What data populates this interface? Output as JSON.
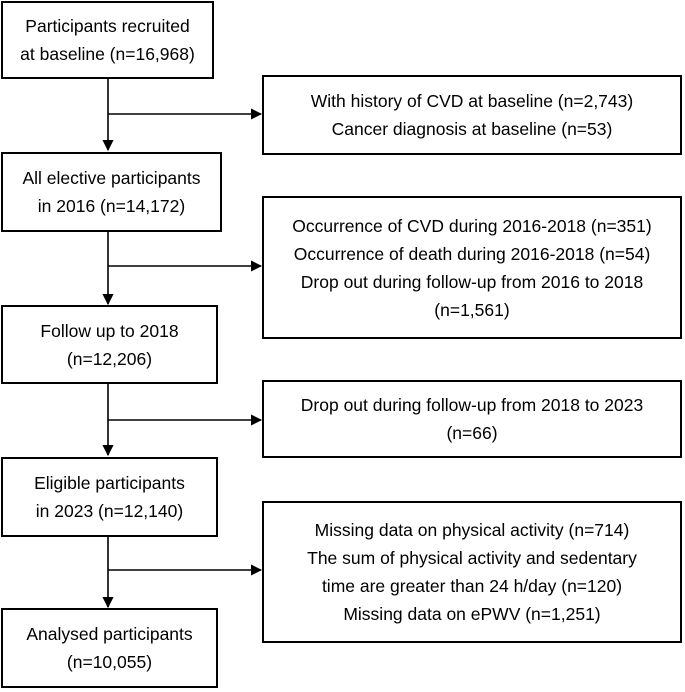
{
  "main_boxes": [
    {
      "id": "recruited",
      "lines": [
        "Participants recruited",
        "at baseline (n=16,968)"
      ]
    },
    {
      "id": "elective",
      "lines": [
        "All elective participants",
        "in 2016 (n=14,172)"
      ]
    },
    {
      "id": "followup",
      "lines": [
        "Follow up to 2018",
        "(n=12,206)"
      ]
    },
    {
      "id": "eligible",
      "lines": [
        "Eligible participants",
        "in 2023 (n=12,140)"
      ]
    },
    {
      "id": "analysed",
      "lines": [
        "Analysed participants",
        "(n=10,055)"
      ]
    }
  ],
  "exclusion_boxes": [
    {
      "id": "excl-baseline",
      "lines": [
        "With history of CVD at baseline (n=2,743)",
        "Cancer diagnosis at baseline (n=53)"
      ]
    },
    {
      "id": "excl-2016-2018",
      "lines": [
        "Occurrence of CVD during 2016-2018 (n=351)",
        "Occurrence of death during 2016-2018 (n=54)",
        "Drop out during follow-up from 2016 to 2018",
        "(n=1,561)"
      ]
    },
    {
      "id": "excl-2018-2023",
      "lines": [
        "Drop out during follow-up from 2018 to 2023",
        "(n=66)"
      ]
    },
    {
      "id": "excl-missing",
      "lines": [
        "Missing data on physical activity (n=714)",
        "The sum of physical activity and sedentary",
        "time are greater than 24 h/day (n=120)",
        "Missing data on ePWV (n=1,251)"
      ]
    }
  ]
}
